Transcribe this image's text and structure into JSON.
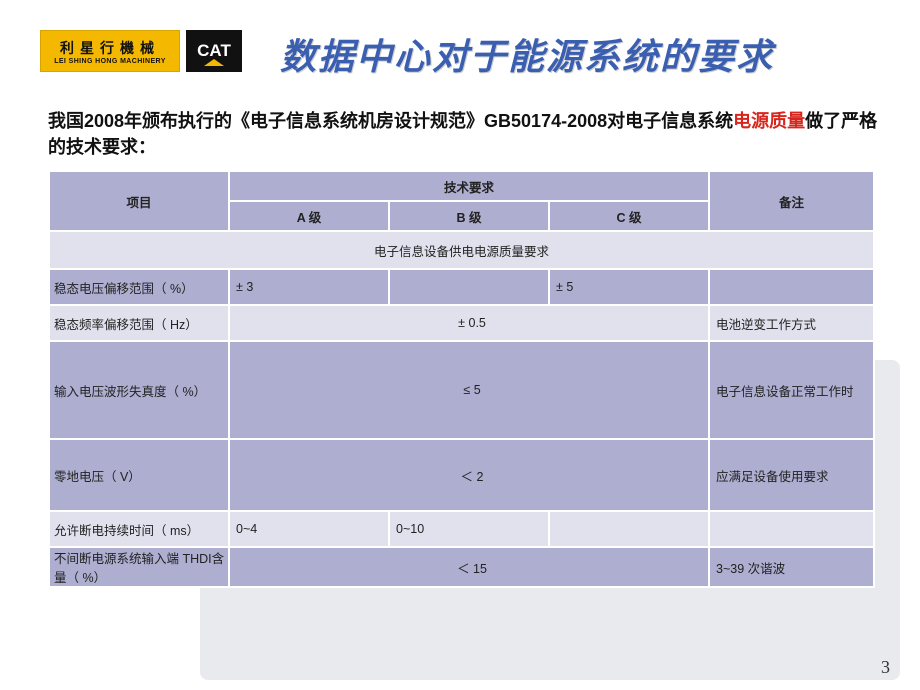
{
  "logo": {
    "lsh_cn": "利星行機械",
    "lsh_en": "LEI SHING HONG MACHINERY",
    "cat": "CAT"
  },
  "title": "数据中心对于能源系统的要求",
  "intro": {
    "pre": "我国2008年颁布执行的《电子信息系统机房设计规范》GB50174-2008对电子信息系统",
    "red": "电源质量",
    "post": "做了严格的技术要求："
  },
  "table": {
    "head": {
      "project": "项目",
      "tech_req": "技术要求",
      "note": "备注",
      "a": "A 级",
      "b": "B 级",
      "c": "C 级"
    },
    "section": "电子信息设备供电电源质量要求",
    "rows": [
      {
        "proj": "稳态电压偏移范围（ %）",
        "a": "± 3",
        "b": "",
        "c": "± 5",
        "note": "",
        "cls": "row-main",
        "h": "short",
        "span_ab": false
      },
      {
        "proj": "稳态频率偏移范围（ Hz）",
        "abc": "± 0.5",
        "note": "电池逆变工作方式",
        "cls": "row-alt",
        "h": "short"
      },
      {
        "proj": "输入电压波形失真度（ %）",
        "abc": "≤ 5",
        "note": "电子信息设备正常工作时",
        "cls": "row-main",
        "h": "tall"
      },
      {
        "proj": "零地电压（ V）",
        "abc": "＜ 2",
        "note": "应满足设备使用要求",
        "cls": "row-main",
        "h": "med"
      },
      {
        "proj": "允许断电持续时间（ ms）",
        "a": "0~4",
        "b": "0~10",
        "c": "",
        "note": "",
        "cls": "row-alt",
        "h": "short"
      },
      {
        "proj": "不间断电源系统输入端 THDI含量（ %）",
        "abc": "＜ 15",
        "note": "3~39 次谐波",
        "cls": "row-main",
        "h": "short"
      }
    ]
  },
  "styles": {
    "header_bg": "#adaed0",
    "alt_bg": "#e1e1ee",
    "border": "#ffffff",
    "title_color": "#3b5fb0",
    "red": "#d7261e",
    "font_body": 12.5,
    "font_intro": 18,
    "font_title": 36
  },
  "slide_number": "3"
}
